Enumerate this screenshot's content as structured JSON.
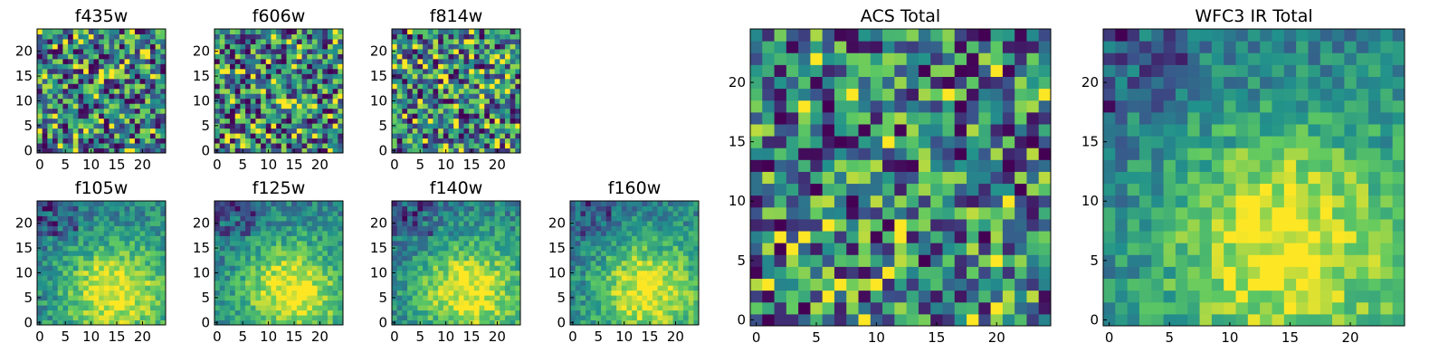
{
  "chart_data": [
    {
      "type": "heatmap",
      "title": "f435w",
      "size": 25,
      "xticks": [
        0,
        5,
        10,
        15,
        20
      ],
      "yticks": [
        0,
        5,
        10,
        15,
        20
      ],
      "colormap": "viridis",
      "pattern": "noise",
      "seed": 11
    },
    {
      "type": "heatmap",
      "title": "f606w",
      "size": 25,
      "xticks": [
        0,
        5,
        10,
        15,
        20
      ],
      "yticks": [
        0,
        5,
        10,
        15,
        20
      ],
      "colormap": "viridis",
      "pattern": "noise",
      "seed": 23
    },
    {
      "type": "heatmap",
      "title": "f814w",
      "size": 25,
      "xticks": [
        0,
        5,
        10,
        15,
        20
      ],
      "yticks": [
        0,
        5,
        10,
        15,
        20
      ],
      "colormap": "viridis",
      "pattern": "noise",
      "seed": 37
    },
    {
      "type": "heatmap",
      "title": "f105w",
      "size": 25,
      "xticks": [
        0,
        5,
        10,
        15,
        20
      ],
      "yticks": [
        0,
        5,
        10,
        15,
        20
      ],
      "colormap": "viridis",
      "pattern": "blob",
      "seed": 41
    },
    {
      "type": "heatmap",
      "title": "f125w",
      "size": 25,
      "xticks": [
        0,
        5,
        10,
        15,
        20
      ],
      "yticks": [
        0,
        5,
        10,
        15,
        20
      ],
      "colormap": "viridis",
      "pattern": "blob",
      "seed": 53
    },
    {
      "type": "heatmap",
      "title": "f140w",
      "size": 25,
      "xticks": [
        0,
        5,
        10,
        15,
        20
      ],
      "yticks": [
        0,
        5,
        10,
        15,
        20
      ],
      "colormap": "viridis",
      "pattern": "blob",
      "seed": 67
    },
    {
      "type": "heatmap",
      "title": "f160w",
      "size": 25,
      "xticks": [
        0,
        5,
        10,
        15,
        20
      ],
      "yticks": [
        0,
        5,
        10,
        15,
        20
      ],
      "colormap": "viridis",
      "pattern": "blob",
      "seed": 79
    },
    {
      "type": "heatmap",
      "title": "ACS Total",
      "size": 25,
      "xticks": [
        0,
        5,
        10,
        15,
        20
      ],
      "yticks": [
        0,
        5,
        10,
        15,
        20
      ],
      "colormap": "viridis",
      "pattern": "noise",
      "seed": 97
    },
    {
      "type": "heatmap",
      "title": "WFC3 IR Total",
      "size": 25,
      "xticks": [
        0,
        5,
        10,
        15,
        20
      ],
      "yticks": [
        0,
        5,
        10,
        15,
        20
      ],
      "colormap": "viridis",
      "pattern": "blob",
      "seed": 113
    }
  ],
  "colormap_stops": [
    "#440154",
    "#3b528b",
    "#21918c",
    "#5ec962",
    "#fde725"
  ]
}
